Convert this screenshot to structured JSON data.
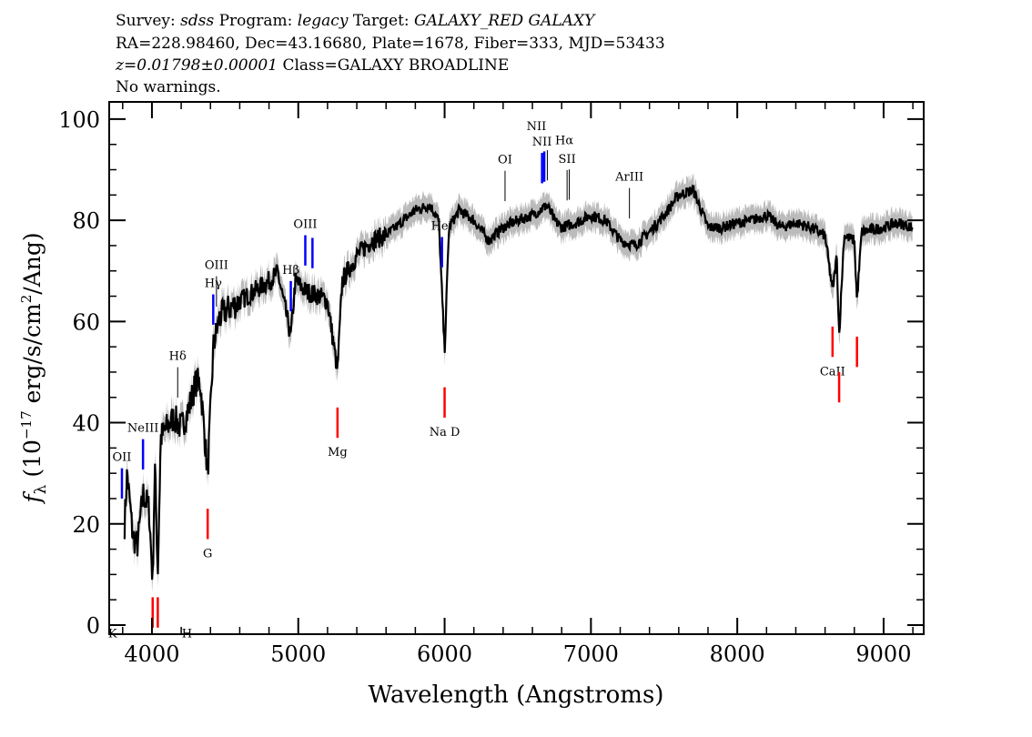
{
  "header": {
    "line1": {
      "survey_label": "Survey:",
      "survey": "sdss",
      "program_label": "Program:",
      "program": "legacy",
      "target_label": "Target:",
      "target": "GALAXY_RED GALAXY"
    },
    "line2": "RA=228.98460, Dec=43.16680, Plate=1678, Fiber=333, MJD=53433",
    "line3": {
      "z": "z=0.01798±0.00001",
      "class": "Class=GALAXY BROADLINE"
    },
    "line4": "No warnings."
  },
  "chart_data": {
    "type": "line",
    "xlabel": "Wavelength (Angstroms)",
    "ylabel_parts": {
      "f": "f",
      "sub": "λ",
      "pre": " (10",
      "exp": "−17",
      "mid": " erg/s/cm",
      "exp2": "2",
      "post": "/Ang)"
    },
    "xlim": [
      3708,
      9274
    ],
    "ylim": [
      -1.8,
      103.4
    ],
    "xticks": [
      4000,
      5000,
      6000,
      7000,
      8000,
      9000
    ],
    "yticks": [
      0,
      20,
      40,
      60,
      80,
      100
    ],
    "xtick_labels": [
      "4000",
      "5000",
      "6000",
      "7000",
      "8000",
      "9000"
    ],
    "ytick_labels": [
      "0",
      "20",
      "40",
      "60",
      "80",
      "100"
    ],
    "colors": {
      "spectrum": "#000000",
      "error": "#bbbbbb",
      "emission": "#0000ff",
      "absorption": "#ff0000",
      "other": "#000000"
    },
    "spectrum": {
      "x": [
        3813,
        3830,
        3870,
        3900,
        3940,
        3980,
        4005,
        4020,
        4040,
        4060,
        4100,
        4150,
        4200,
        4250,
        4300,
        4330,
        4381,
        4420,
        4460,
        4500,
        4600,
        4700,
        4800,
        4860,
        4949,
        4980,
        5050,
        5150,
        5200,
        5268,
        5300,
        5400,
        5500,
        5600,
        5700,
        5800,
        5900,
        5960,
        6000,
        6030,
        6100,
        6200,
        6300,
        6400,
        6500,
        6600,
        6700,
        6750,
        6800,
        6900,
        7000,
        7100,
        7200,
        7300,
        7400,
        7500,
        7600,
        7700,
        7800,
        7900,
        8000,
        8100,
        8200,
        8300,
        8400,
        8500,
        8600,
        8651,
        8680,
        8696,
        8730,
        8800,
        8818,
        8850,
        9000,
        9100,
        9200
      ],
      "y": [
        20,
        30,
        17.5,
        15.6,
        26,
        23,
        8.5,
        32,
        10,
        37,
        39,
        41,
        39,
        42.6,
        48,
        48,
        30,
        55,
        60.6,
        62,
        64,
        66,
        68,
        69.6,
        57,
        68,
        66,
        65,
        64,
        50,
        68,
        73,
        76,
        77,
        79.5,
        82,
        83,
        80,
        54,
        78.6,
        82,
        80,
        76,
        78.6,
        80,
        81,
        83,
        80,
        78.6,
        79.5,
        81,
        80,
        76,
        75,
        77.7,
        81,
        85,
        86,
        78.6,
        78.6,
        79.5,
        80,
        81,
        78.6,
        79.5,
        78.6,
        77,
        66,
        73,
        57,
        77,
        76,
        64,
        77.7,
        78.6,
        79.5,
        78.6
      ]
    },
    "lines": [
      {
        "label": "OII",
        "wavelength": 3795,
        "kind": "emission"
      },
      {
        "label": "NeIII",
        "wavelength": 3939,
        "kind": "emission"
      },
      {
        "label": "Hδ",
        "wavelength": 4176,
        "kind": "other"
      },
      {
        "label": "Hγ",
        "wavelength": 4419,
        "kind": "emission"
      },
      {
        "label": "OIII",
        "wavelength": 4441,
        "kind": "other"
      },
      {
        "label": "Hβ",
        "wavelength": 4949,
        "kind": "emission"
      },
      {
        "label": "OIII",
        "wavelength": 5048,
        "kind": "emission"
      },
      {
        "label": "",
        "wavelength": 5097,
        "kind": "emission"
      },
      {
        "label": "HeI",
        "wavelength": 5982,
        "kind": "emission"
      },
      {
        "label": "OI",
        "wavelength": 6413,
        "kind": "other"
      },
      {
        "label": "NII",
        "wavelength": 6666,
        "kind": "emission"
      },
      {
        "label": "Hα",
        "wavelength": 6681,
        "kind": "emission"
      },
      {
        "label": "NII",
        "wavelength": 6702,
        "kind": "other"
      },
      {
        "label": "SII",
        "wavelength": 6837,
        "kind": "other"
      },
      {
        "label": "",
        "wavelength": 6852,
        "kind": "other"
      },
      {
        "label": "ArIII",
        "wavelength": 7263,
        "kind": "other"
      },
      {
        "label": "K",
        "wavelength": 4005,
        "kind": "absorption"
      },
      {
        "label": "H",
        "wavelength": 4040,
        "kind": "absorption"
      },
      {
        "label": "G",
        "wavelength": 4381,
        "kind": "absorption"
      },
      {
        "label": "Mg",
        "wavelength": 5268,
        "kind": "absorption"
      },
      {
        "label": "Na D",
        "wavelength": 6000,
        "kind": "absorption"
      },
      {
        "label": "CaII",
        "wavelength": 8651,
        "kind": "absorption"
      },
      {
        "label": "",
        "wavelength": 8696,
        "kind": "absorption"
      },
      {
        "label": "",
        "wavelength": 8818,
        "kind": "absorption"
      }
    ]
  }
}
